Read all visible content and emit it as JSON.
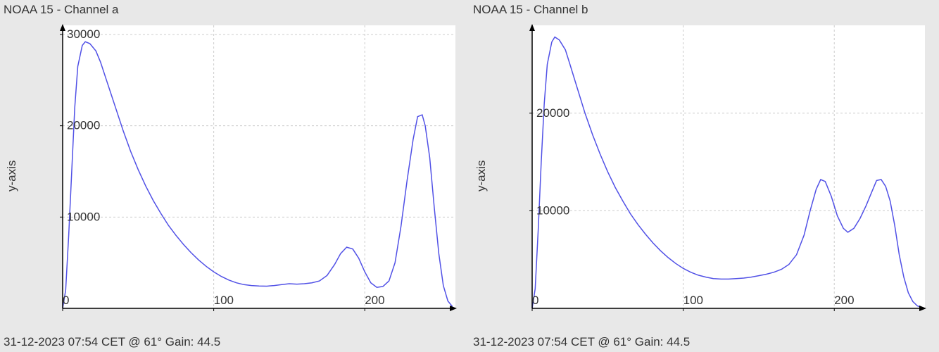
{
  "charts": [
    {
      "title": "NOAA 15 - Channel a",
      "footer": "31-12-2023 07:54 CET @ 61° Gain: 44.5",
      "ylabel": "y-axis",
      "type": "line",
      "xlim": [
        0,
        260
      ],
      "ylim": [
        0,
        31000
      ],
      "xticks": [
        0,
        100,
        200
      ],
      "yticks": [
        10000,
        20000,
        30000
      ],
      "line_color": "#5151e6",
      "background_color": "#ffffff",
      "grid_color": "#cccccc",
      "axis_color": "#000000",
      "tick_fontsize": 17,
      "title_fontsize": 17,
      "series": [
        [
          0,
          0
        ],
        [
          2,
          2000
        ],
        [
          4,
          8000
        ],
        [
          6,
          15000
        ],
        [
          8,
          22000
        ],
        [
          10,
          26500
        ],
        [
          13,
          28800
        ],
        [
          15,
          29200
        ],
        [
          18,
          29000
        ],
        [
          22,
          28200
        ],
        [
          25,
          27000
        ],
        [
          30,
          24500
        ],
        [
          35,
          22000
        ],
        [
          40,
          19500
        ],
        [
          45,
          17200
        ],
        [
          50,
          15200
        ],
        [
          55,
          13400
        ],
        [
          60,
          11800
        ],
        [
          65,
          10400
        ],
        [
          70,
          9100
        ],
        [
          75,
          8000
        ],
        [
          80,
          7000
        ],
        [
          85,
          6100
        ],
        [
          90,
          5300
        ],
        [
          95,
          4600
        ],
        [
          100,
          4000
        ],
        [
          105,
          3500
        ],
        [
          110,
          3100
        ],
        [
          115,
          2800
        ],
        [
          120,
          2600
        ],
        [
          125,
          2500
        ],
        [
          130,
          2450
        ],
        [
          135,
          2430
        ],
        [
          140,
          2500
        ],
        [
          145,
          2600
        ],
        [
          150,
          2700
        ],
        [
          155,
          2650
        ],
        [
          160,
          2700
        ],
        [
          165,
          2800
        ],
        [
          170,
          3000
        ],
        [
          175,
          3600
        ],
        [
          180,
          4800
        ],
        [
          184,
          6000
        ],
        [
          188,
          6700
        ],
        [
          192,
          6500
        ],
        [
          196,
          5500
        ],
        [
          200,
          4000
        ],
        [
          204,
          2800
        ],
        [
          208,
          2300
        ],
        [
          212,
          2400
        ],
        [
          216,
          3000
        ],
        [
          220,
          5000
        ],
        [
          224,
          9000
        ],
        [
          228,
          14000
        ],
        [
          232,
          18500
        ],
        [
          235,
          21000
        ],
        [
          238,
          21200
        ],
        [
          240,
          20000
        ],
        [
          243,
          16500
        ],
        [
          246,
          11000
        ],
        [
          249,
          6000
        ],
        [
          252,
          2500
        ],
        [
          255,
          800
        ],
        [
          258,
          200
        ]
      ]
    },
    {
      "title": "NOAA 15 - Channel b",
      "footer": "31-12-2023 07:54 CET @ 61° Gain: 44.5",
      "ylabel": "y-axis",
      "type": "line",
      "xlim": [
        0,
        260
      ],
      "ylim": [
        0,
        29000
      ],
      "xticks": [
        0,
        100,
        200
      ],
      "yticks": [
        10000,
        20000
      ],
      "line_color": "#5151e6",
      "background_color": "#ffffff",
      "grid_color": "#cccccc",
      "axis_color": "#000000",
      "tick_fontsize": 17,
      "title_fontsize": 17,
      "series": [
        [
          0,
          0
        ],
        [
          2,
          2000
        ],
        [
          4,
          8000
        ],
        [
          6,
          15000
        ],
        [
          8,
          21000
        ],
        [
          10,
          25000
        ],
        [
          13,
          27300
        ],
        [
          15,
          27800
        ],
        [
          18,
          27500
        ],
        [
          22,
          26500
        ],
        [
          25,
          25000
        ],
        [
          30,
          22500
        ],
        [
          35,
          20000
        ],
        [
          40,
          17800
        ],
        [
          45,
          15800
        ],
        [
          50,
          14000
        ],
        [
          55,
          12400
        ],
        [
          60,
          11000
        ],
        [
          65,
          9700
        ],
        [
          70,
          8600
        ],
        [
          75,
          7600
        ],
        [
          80,
          6700
        ],
        [
          85,
          5900
        ],
        [
          90,
          5200
        ],
        [
          95,
          4600
        ],
        [
          100,
          4100
        ],
        [
          105,
          3700
        ],
        [
          110,
          3400
        ],
        [
          115,
          3200
        ],
        [
          120,
          3050
        ],
        [
          125,
          3000
        ],
        [
          130,
          3000
        ],
        [
          135,
          3050
        ],
        [
          140,
          3100
        ],
        [
          145,
          3200
        ],
        [
          150,
          3350
        ],
        [
          155,
          3500
        ],
        [
          160,
          3700
        ],
        [
          165,
          4000
        ],
        [
          170,
          4500
        ],
        [
          175,
          5500
        ],
        [
          180,
          7500
        ],
        [
          184,
          10000
        ],
        [
          188,
          12200
        ],
        [
          191,
          13200
        ],
        [
          194,
          13000
        ],
        [
          198,
          11500
        ],
        [
          202,
          9500
        ],
        [
          206,
          8200
        ],
        [
          209,
          7800
        ],
        [
          213,
          8200
        ],
        [
          217,
          9200
        ],
        [
          221,
          10500
        ],
        [
          225,
          12000
        ],
        [
          228,
          13100
        ],
        [
          231,
          13200
        ],
        [
          234,
          12500
        ],
        [
          237,
          11000
        ],
        [
          240,
          8500
        ],
        [
          243,
          5500
        ],
        [
          246,
          3200
        ],
        [
          249,
          1600
        ],
        [
          252,
          700
        ],
        [
          255,
          250
        ],
        [
          258,
          80
        ]
      ]
    }
  ]
}
